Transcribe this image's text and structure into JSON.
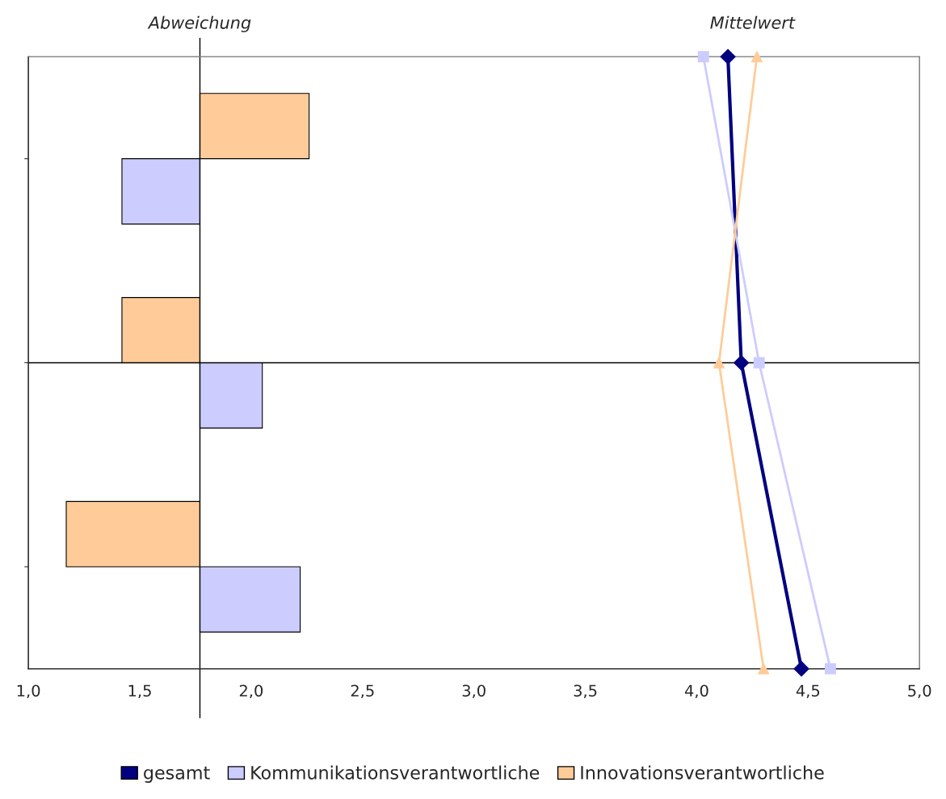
{
  "chart_data": {
    "type": "bar",
    "orientation": "horizontal",
    "categories": [
      null,
      null,
      null
    ],
    "xlim": [
      1.0,
      5.0
    ],
    "xticks": [
      {
        "value": 1.0,
        "label": "1,0"
      },
      {
        "value": 1.5,
        "label": "1,5"
      },
      {
        "value": 2.0,
        "label": "2,0"
      },
      {
        "value": 2.5,
        "label": "2,5"
      },
      {
        "value": 3.0,
        "label": "3,0"
      },
      {
        "value": 3.5,
        "label": "3,5"
      },
      {
        "value": 4.0,
        "label": "4,0"
      },
      {
        "value": 4.5,
        "label": "4,5"
      },
      {
        "value": 5.0,
        "label": "5,0"
      }
    ],
    "series": [
      {
        "name": "gesamt",
        "type": "line",
        "axis": "y2",
        "color": "#000080",
        "marker": "diamond",
        "values": [
          4.14,
          4.2,
          4.47
        ]
      },
      {
        "type": "line",
        "axis": "y2",
        "color": "#ccccff",
        "marker": "square",
        "values": [
          4.03,
          4.28,
          4.6
        ]
      },
      {
        "type": "line",
        "axis": "y2",
        "color": "#ffcc99",
        "marker": "triangle",
        "values": [
          4.27,
          4.1,
          4.3
        ]
      },
      {
        "name": "Kommunikationsverantwortliche",
        "color": "#ccccff",
        "base": [
          1.77,
          1.77,
          1.77
        ],
        "values": [
          -0.35,
          0.28,
          0.45
        ]
      },
      {
        "name": "Innovationsverantwortliche",
        "color": "#ffcc99",
        "base": [
          1.77,
          1.77,
          1.77
        ],
        "values": [
          0.49,
          -0.35,
          -0.6
        ]
      }
    ],
    "annotations": [
      "Abweichung",
      "Mittelwert"
    ],
    "legend": "bottom",
    "grid": false
  }
}
